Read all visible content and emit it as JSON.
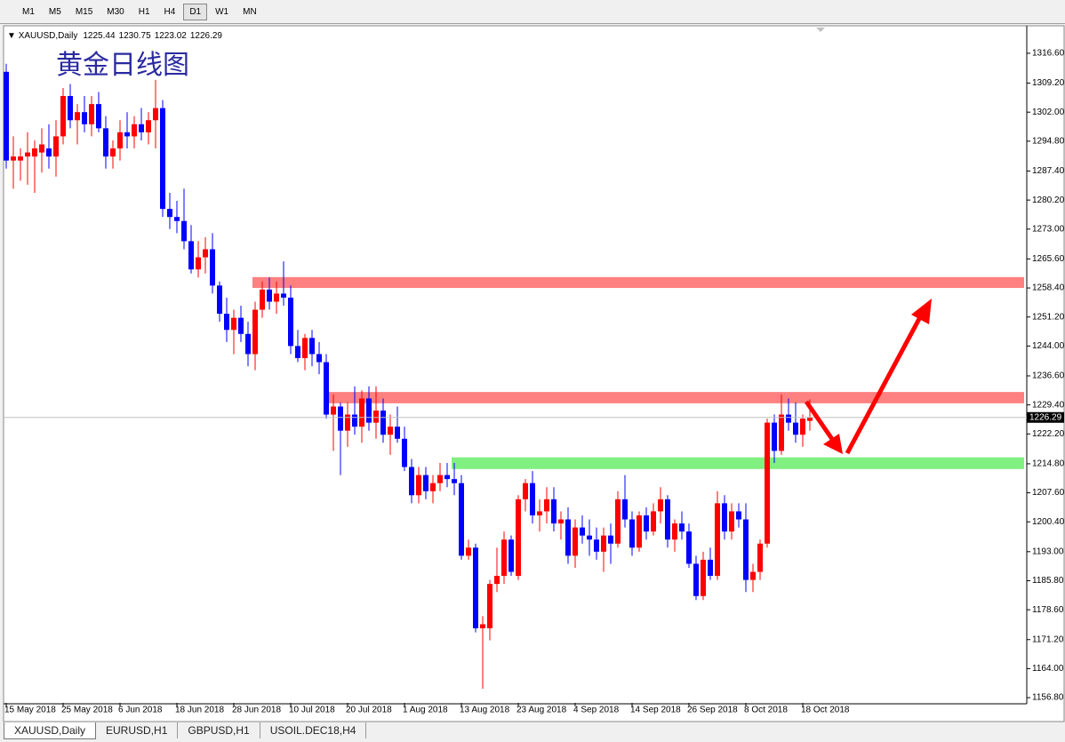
{
  "toolbar": {
    "timeframes": [
      "M1",
      "M5",
      "M15",
      "M30",
      "H1",
      "H4",
      "D1",
      "W1",
      "MN"
    ],
    "active": 6
  },
  "tabs": {
    "items": [
      "XAUUSD,Daily",
      "EURUSD,H1",
      "GBPUSD,H1",
      "USOIL.DEC18,H4"
    ],
    "active": 0
  },
  "chart_data": {
    "type": "candlestick",
    "symbol": "XAUUSD,Daily",
    "title": "黄金日线图",
    "up_color": "#ff0000",
    "down_color": "#0000ff",
    "categories": [
      "15 May 2018",
      null,
      null,
      null,
      null,
      null,
      null,
      null,
      "25 May 2018",
      null,
      null,
      null,
      null,
      null,
      null,
      null,
      "6 Jun 2018",
      null,
      null,
      null,
      null,
      null,
      null,
      null,
      "18 Jun 2018",
      null,
      null,
      null,
      null,
      null,
      null,
      null,
      "28 Jun 2018",
      null,
      null,
      null,
      null,
      null,
      null,
      null,
      "10 Jul 2018",
      null,
      null,
      null,
      null,
      null,
      null,
      null,
      "20 Jul 2018",
      null,
      null,
      null,
      null,
      null,
      null,
      null,
      "1 Aug 2018",
      null,
      null,
      null,
      null,
      null,
      null,
      null,
      "13 Aug 2018",
      null,
      null,
      null,
      null,
      null,
      null,
      null,
      "23 Aug 2018",
      null,
      null,
      null,
      null,
      null,
      null,
      null,
      "4 Sep 2018",
      null,
      null,
      null,
      null,
      null,
      null,
      null,
      "14 Sep 2018",
      null,
      null,
      null,
      null,
      null,
      null,
      null,
      "26 Sep 2018",
      null,
      null,
      null,
      null,
      null,
      null,
      null,
      "8 Oct 2018",
      null,
      null,
      null,
      null,
      null,
      null,
      null,
      "18 Oct 2018",
      null
    ],
    "open": [
      1312,
      1290,
      1290,
      1291,
      1291,
      1292,
      1293,
      1291,
      1296,
      1306,
      1300,
      1302,
      1299,
      1304,
      1298,
      1291,
      1293,
      1297,
      1296,
      1299,
      1297,
      1300,
      1303,
      1278,
      1276,
      1275,
      1270,
      1263,
      1266,
      1268,
      1259,
      1252,
      1248,
      1251,
      1247,
      1242,
      1253,
      1258,
      1255,
      1257,
      1256,
      1244,
      1241,
      1246,
      1242,
      1240,
      1227,
      1229,
      1223,
      1227,
      1224,
      1231,
      1225,
      1228,
      1222,
      1224,
      1221,
      1214,
      1207,
      1212,
      1208,
      1210,
      1212,
      1211,
      1210,
      1192,
      1194,
      1174,
      1174,
      1185,
      1187,
      1196,
      1187,
      1206,
      1210,
      1202,
      1203,
      1206,
      1200,
      1201,
      1192,
      1199,
      1197,
      1196,
      1193,
      1197,
      1195,
      1206,
      1201,
      1194,
      1202,
      1198,
      1203,
      1206,
      1196,
      1200,
      1198,
      1190,
      1182,
      1191,
      1187,
      1205,
      1198,
      1203,
      1201,
      1186,
      1188,
      1195,
      1225,
      1218,
      1227,
      1225,
      1222,
      1225.44
    ],
    "high": [
      1314,
      1296,
      1293,
      1297,
      1295,
      1298,
      1299,
      1300,
      1308,
      1309,
      1304,
      1306,
      1306,
      1307,
      1301,
      1295,
      1300,
      1302,
      1301,
      1303,
      1302,
      1310,
      1305,
      1282,
      1280,
      1283,
      1274,
      1270,
      1271,
      1272,
      1260,
      1256,
      1253,
      1254,
      1250,
      1255,
      1260,
      1261,
      1260,
      1265,
      1259,
      1248,
      1247,
      1248,
      1245,
      1242,
      1232,
      1230,
      1230,
      1234,
      1233,
      1234,
      1234,
      1231,
      1227,
      1229,
      1224,
      1216,
      1214,
      1214,
      1212,
      1215,
      1215,
      1215,
      1212,
      1196,
      1195,
      1177,
      1186,
      1194,
      1198,
      1197,
      1207,
      1211,
      1213,
      1206,
      1209,
      1209,
      1203,
      1204,
      1201,
      1202,
      1201,
      1199,
      1199,
      1200,
      1208,
      1212,
      1203,
      1203,
      1204,
      1205,
      1209,
      1207,
      1201,
      1203,
      1200,
      1192,
      1193,
      1194,
      1208,
      1207,
      1205,
      1205,
      1205,
      1190,
      1196,
      1226,
      1227,
      1232,
      1231,
      1230,
      1227,
      1230.75
    ],
    "low": [
      1288,
      1283,
      1285,
      1284,
      1282,
      1287,
      1288,
      1286,
      1294,
      1298,
      1294,
      1297,
      1296,
      1297,
      1288,
      1288,
      1290,
      1293,
      1293,
      1295,
      1294,
      1293,
      1276,
      1273,
      1272,
      1268,
      1262,
      1261,
      1262,
      1257,
      1250,
      1245,
      1242,
      1245,
      1239,
      1238,
      1251,
      1253,
      1252,
      1254,
      1242,
      1240,
      1238,
      1239,
      1237,
      1226,
      1218,
      1212,
      1219,
      1222,
      1220,
      1223,
      1221,
      1220,
      1217,
      1220,
      1213,
      1205,
      1205,
      1206,
      1205,
      1208,
      1209,
      1207,
      1191,
      1191,
      1173,
      1159,
      1171,
      1183,
      1185,
      1187,
      1186,
      1203,
      1200,
      1198,
      1200,
      1198,
      1196,
      1190,
      1189,
      1195,
      1192,
      1191,
      1188,
      1190,
      1194,
      1199,
      1192,
      1193,
      1196,
      1197,
      1200,
      1194,
      1193,
      1196,
      1189,
      1181,
      1181,
      1186,
      1186,
      1196,
      1196,
      1199,
      1183,
      1183,
      1186,
      1194,
      1215,
      1217,
      1223,
      1220,
      1219,
      1223.02
    ],
    "close": [
      1290,
      1291,
      1291,
      1292,
      1293,
      1294,
      1291,
      1296,
      1306,
      1300,
      1302,
      1299,
      1304,
      1298,
      1291,
      1293,
      1297,
      1296,
      1299,
      1297,
      1300,
      1303,
      1278,
      1276,
      1275,
      1270,
      1263,
      1266,
      1268,
      1259,
      1252,
      1248,
      1251,
      1247,
      1242,
      1253,
      1258,
      1255,
      1257,
      1256,
      1244,
      1241,
      1246,
      1242,
      1240,
      1227,
      1229,
      1223,
      1227,
      1224,
      1231,
      1225,
      1228,
      1222,
      1224,
      1221,
      1214,
      1207,
      1212,
      1208,
      1210,
      1212,
      1211,
      1210,
      1192,
      1194,
      1174,
      1175,
      1185,
      1187,
      1196,
      1188,
      1206,
      1210,
      1202,
      1203,
      1206,
      1200,
      1201,
      1192,
      1199,
      1197,
      1196,
      1193,
      1197,
      1195,
      1206,
      1201,
      1194,
      1202,
      1198,
      1203,
      1206,
      1196,
      1200,
      1198,
      1190,
      1182,
      1191,
      1187,
      1205,
      1198,
      1203,
      1201,
      1186,
      1188,
      1195,
      1225,
      1218,
      1227,
      1225,
      1222,
      1226,
      1226.29
    ],
    "ylim": [
      1155.5,
      1323.2
    ],
    "yticks": [
      {
        "value": 1316.6,
        "label": "1316.60"
      },
      {
        "value": 1309.2,
        "label": "1309.20"
      },
      {
        "value": 1302,
        "label": "1302.00"
      },
      {
        "value": 1294.8,
        "label": "1294.80"
      },
      {
        "value": 1287.4,
        "label": "1287.40"
      },
      {
        "value": 1280.2,
        "label": "1280.20"
      },
      {
        "value": 1273,
        "label": "1273.00"
      },
      {
        "value": 1265.6,
        "label": "1265.60"
      },
      {
        "value": 1258.4,
        "label": "1258.40"
      },
      {
        "value": 1251.2,
        "label": "1251.20"
      },
      {
        "value": 1244,
        "label": "1244.00"
      },
      {
        "value": 1236.6,
        "label": "1236.60"
      },
      {
        "value": 1229.4,
        "label": "1229.40"
      },
      {
        "value": 1222.2,
        "label": "1222.20"
      },
      {
        "value": 1214.8,
        "label": "1214.80"
      },
      {
        "value": 1207.6,
        "label": "1207.60"
      },
      {
        "value": 1200.4,
        "label": "1200.40"
      },
      {
        "value": 1193,
        "label": "1193.00"
      },
      {
        "value": 1185.8,
        "label": "1185.80"
      },
      {
        "value": 1178.6,
        "label": "1178.60"
      },
      {
        "value": 1171.2,
        "label": "1171.20"
      },
      {
        "value": 1164,
        "label": "1164.00"
      },
      {
        "value": 1156.8,
        "label": "1156.80"
      }
    ],
    "zones": [
      {
        "low": 1258.4,
        "high": 1261.1,
        "start": 35,
        "color": "#ff8080"
      },
      {
        "low": 1229.8,
        "high": 1232.6,
        "start": 45,
        "color": "#ff8080"
      },
      {
        "low": 1213.5,
        "high": 1216.4,
        "start": 63,
        "color": "#80f080"
      }
    ]
  }
}
